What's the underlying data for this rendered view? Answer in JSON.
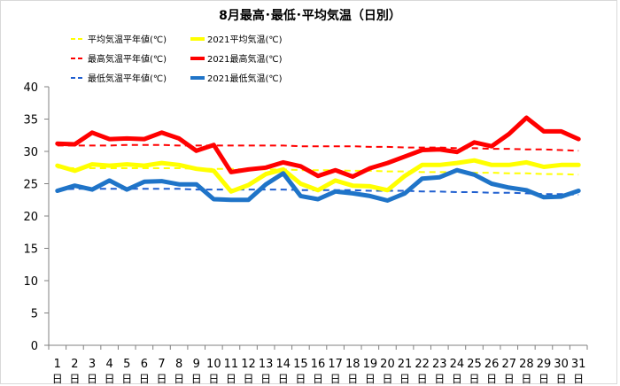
{
  "chart_data": {
    "type": "line",
    "title": "8月最高･最低･平均気温（日別）",
    "xlabel": "",
    "ylabel": "",
    "ylim": [
      0,
      40
    ],
    "yticks": [
      0,
      5,
      10,
      15,
      20,
      25,
      30,
      35,
      40
    ],
    "grid": false,
    "legend_position": "top-left",
    "categories": [
      "1",
      "2",
      "3",
      "4",
      "5",
      "6",
      "7",
      "8",
      "9",
      "10",
      "11",
      "12",
      "13",
      "14",
      "15",
      "16",
      "17",
      "18",
      "19",
      "20",
      "21",
      "22",
      "23",
      "24",
      "25",
      "26",
      "27",
      "28",
      "29",
      "30",
      "31"
    ],
    "category_suffix": "日",
    "series": [
      {
        "name": "平均気温平年値(℃)",
        "color": "#ffff00",
        "style": "dashed",
        "width": 2,
        "values": [
          27.5,
          27.4,
          27.4,
          27.4,
          27.4,
          27.4,
          27.4,
          27.4,
          27.3,
          27.3,
          27.3,
          27.2,
          27.2,
          27.2,
          27.1,
          27.1,
          27.1,
          27.0,
          27.0,
          26.9,
          26.9,
          26.8,
          26.8,
          26.8,
          26.7,
          26.7,
          26.6,
          26.6,
          26.5,
          26.5,
          26.4
        ]
      },
      {
        "name": "2021平均気温(℃)",
        "color": "#ffff00",
        "style": "solid",
        "width": 5,
        "values": [
          27.8,
          27.0,
          28.0,
          27.8,
          28.0,
          27.8,
          28.2,
          27.9,
          27.3,
          27.0,
          23.8,
          24.8,
          26.5,
          27.2,
          25.0,
          24.0,
          25.5,
          24.7,
          24.6,
          24.0,
          26.2,
          27.9,
          27.9,
          28.2,
          28.6,
          27.9,
          27.9,
          28.3,
          27.6,
          27.9,
          27.9
        ]
      },
      {
        "name": "最高気温平年値(℃)",
        "color": "#ff0000",
        "style": "dashed",
        "width": 2,
        "values": [
          30.9,
          30.9,
          30.9,
          30.9,
          31.0,
          31.0,
          31.0,
          30.9,
          30.9,
          30.9,
          30.9,
          30.9,
          30.9,
          30.9,
          30.8,
          30.8,
          30.8,
          30.8,
          30.7,
          30.7,
          30.6,
          30.6,
          30.6,
          30.5,
          30.5,
          30.4,
          30.4,
          30.3,
          30.3,
          30.2,
          30.1
        ]
      },
      {
        "name": "2021最高気温(℃)",
        "color": "#ff0000",
        "style": "solid",
        "width": 5,
        "values": [
          31.2,
          31.1,
          32.9,
          31.9,
          32.0,
          31.9,
          32.9,
          32.0,
          30.1,
          31.0,
          26.8,
          27.2,
          27.5,
          28.3,
          27.7,
          26.2,
          27.1,
          26.1,
          27.4,
          28.2,
          29.2,
          30.2,
          30.3,
          29.9,
          31.4,
          30.8,
          32.7,
          35.2,
          33.1,
          33.1,
          31.9
        ]
      },
      {
        "name": "最低気温平年値(℃)",
        "color": "#1f5fd0",
        "style": "dashed",
        "width": 2,
        "values": [
          24.1,
          24.2,
          24.2,
          24.2,
          24.2,
          24.2,
          24.2,
          24.2,
          24.1,
          24.1,
          24.1,
          24.1,
          24.1,
          24.1,
          24.0,
          24.0,
          24.0,
          24.0,
          23.9,
          23.9,
          23.9,
          23.8,
          23.8,
          23.7,
          23.7,
          23.6,
          23.6,
          23.5,
          23.4,
          23.4,
          23.3
        ]
      },
      {
        "name": "2021最低気温(℃)",
        "color": "#1f74c8",
        "style": "solid",
        "width": 5,
        "values": [
          23.9,
          24.7,
          24.1,
          25.5,
          24.1,
          25.3,
          25.4,
          24.9,
          24.9,
          22.6,
          22.5,
          22.5,
          24.9,
          26.6,
          23.1,
          22.6,
          23.8,
          23.5,
          23.1,
          22.4,
          23.5,
          25.8,
          26.0,
          27.1,
          26.4,
          25.0,
          24.4,
          24.0,
          22.9,
          23.0,
          23.9
        ]
      }
    ]
  }
}
